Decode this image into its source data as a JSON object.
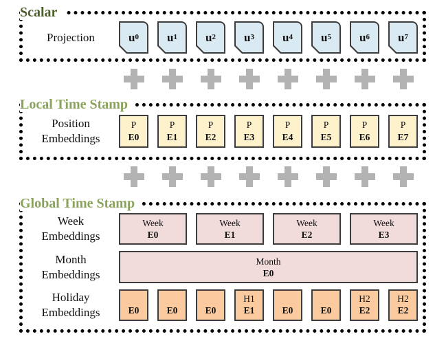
{
  "sections": {
    "scalar": {
      "title": "Scalar",
      "row_label": "Projection",
      "cells": [
        {
          "base": "u",
          "sub": "0"
        },
        {
          "base": "u",
          "sub": "1"
        },
        {
          "base": "u",
          "sub": "2"
        },
        {
          "base": "u",
          "sub": "3"
        },
        {
          "base": "u",
          "sub": "4"
        },
        {
          "base": "u",
          "sub": "5"
        },
        {
          "base": "u",
          "sub": "6"
        },
        {
          "base": "u",
          "sub": "7"
        }
      ]
    },
    "local": {
      "title": "Local Time Stamp",
      "row_label": {
        "line1": "Position",
        "line2": "Embeddings"
      },
      "cells": [
        {
          "top": "P",
          "bottom": "E0"
        },
        {
          "top": "P",
          "bottom": "E1"
        },
        {
          "top": "P",
          "bottom": "E2"
        },
        {
          "top": "P",
          "bottom": "E3"
        },
        {
          "top": "P",
          "bottom": "E4"
        },
        {
          "top": "P",
          "bottom": "E5"
        },
        {
          "top": "P",
          "bottom": "E6"
        },
        {
          "top": "P",
          "bottom": "E7"
        }
      ]
    },
    "global": {
      "title": "Global Time Stamp",
      "week": {
        "label": {
          "line1": "Week",
          "line2": "Embeddings"
        },
        "cells": [
          {
            "top": "Week",
            "bottom": "E0"
          },
          {
            "top": "Week",
            "bottom": "E1"
          },
          {
            "top": "Week",
            "bottom": "E2"
          },
          {
            "top": "Week",
            "bottom": "E3"
          }
        ]
      },
      "month": {
        "label": {
          "line1": "Month",
          "line2": "Embeddings"
        },
        "cell": {
          "top": "Month",
          "bottom": "E0"
        }
      },
      "holiday": {
        "label": {
          "line1": "Holiday",
          "line2": "Embeddings"
        },
        "cells": [
          {
            "top": "",
            "bottom": "E0"
          },
          {
            "top": "",
            "bottom": "E0"
          },
          {
            "top": "",
            "bottom": "E0"
          },
          {
            "top": "H1",
            "bottom": "E1"
          },
          {
            "top": "",
            "bottom": "E0"
          },
          {
            "top": "",
            "bottom": "E0"
          },
          {
            "top": "H2",
            "bottom": "E2"
          },
          {
            "top": "H2",
            "bottom": "E2"
          }
        ]
      }
    }
  },
  "operators": {
    "plus_symbol": "+",
    "row1_count": 8,
    "row2_count": 8
  },
  "colors": {
    "scalar_accent": "#4e5f2d",
    "timestamp_title_green": "#8aa35b",
    "timestamp_dash_green": "#b6d09e",
    "projection_cell_fill": "#d9eaf3",
    "position_cell_fill": "#fdf2cb",
    "week_month_cell_fill": "#f2dcdb",
    "holiday_cell_fill": "#fbca9e",
    "cell_border": "#3d3d3d",
    "plus_gray": "#b3b3b3"
  }
}
